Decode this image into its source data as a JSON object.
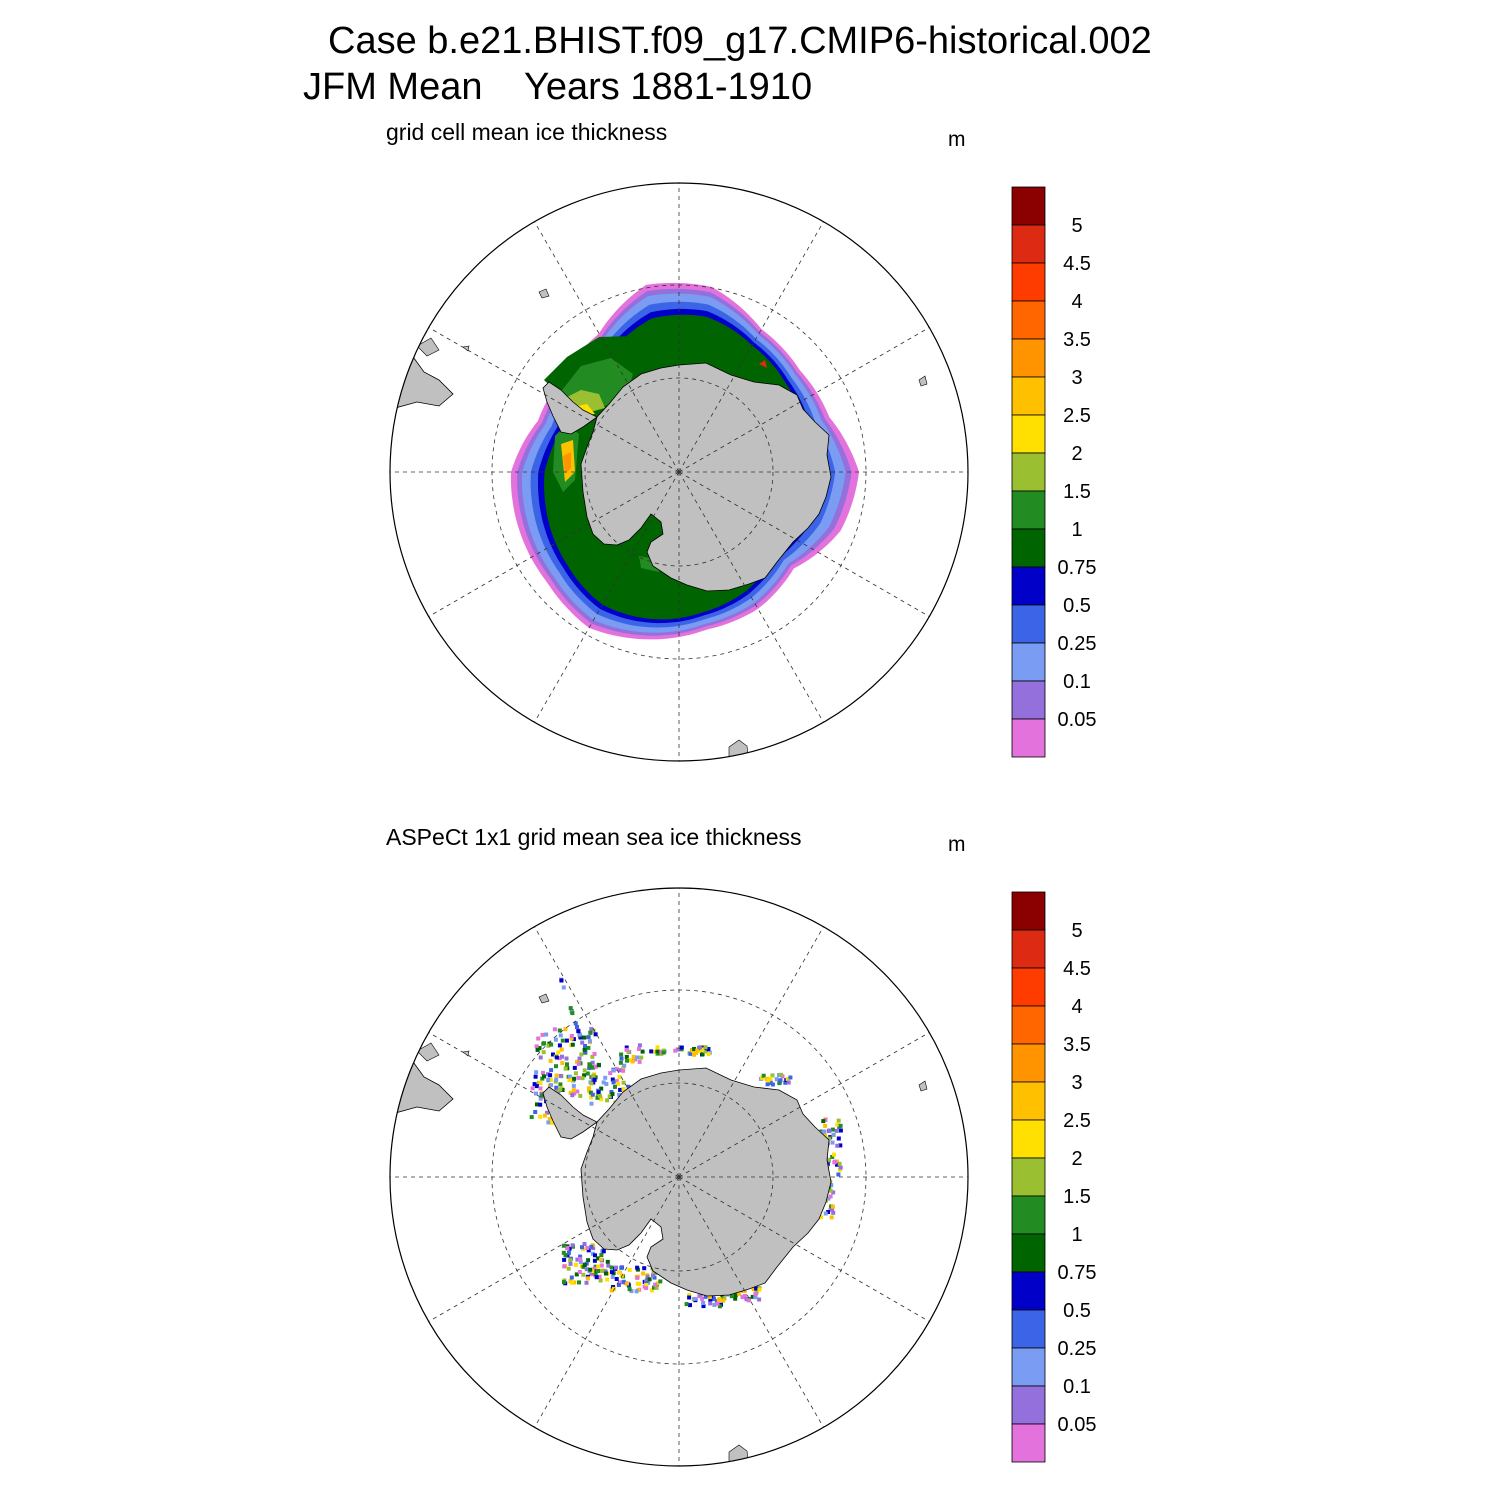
{
  "header": {
    "line1": "Case b.e21.BHIST.f09_g17.CMIP6-historical.002",
    "line2": "JFM Mean    Years 1881-1910"
  },
  "panels": [
    {
      "title": "grid cell mean ice thickness",
      "units": "m",
      "description": "model sea-ice thickness field (continuous ring)"
    },
    {
      "title": "ASPeCt 1x1 grid mean sea ice thickness",
      "units": "m",
      "description": "observations along ship tracks (sparse)"
    }
  ],
  "colorbar": {
    "labels": [
      "5",
      "4.5",
      "4",
      "3.5",
      "3",
      "2.5",
      "2",
      "1.5",
      "1",
      "0.75",
      "0.5",
      "0.25",
      "0.1",
      "0.05"
    ],
    "colors_top_to_bottom": [
      "#8b0000",
      "#dd2a12",
      "#ff3c00",
      "#ff6600",
      "#ff9400",
      "#ffc000",
      "#ffe000",
      "#9ac032",
      "#228b22",
      "#006400",
      "#0000c8",
      "#3c64e6",
      "#7a9cf2",
      "#9370db",
      "#e472dc"
    ]
  },
  "map_style": {
    "land_color": "#c0c0c0",
    "ocean_color": "#ffffff",
    "gridline_style": "dashed",
    "projection": "south polar stereographic"
  }
}
